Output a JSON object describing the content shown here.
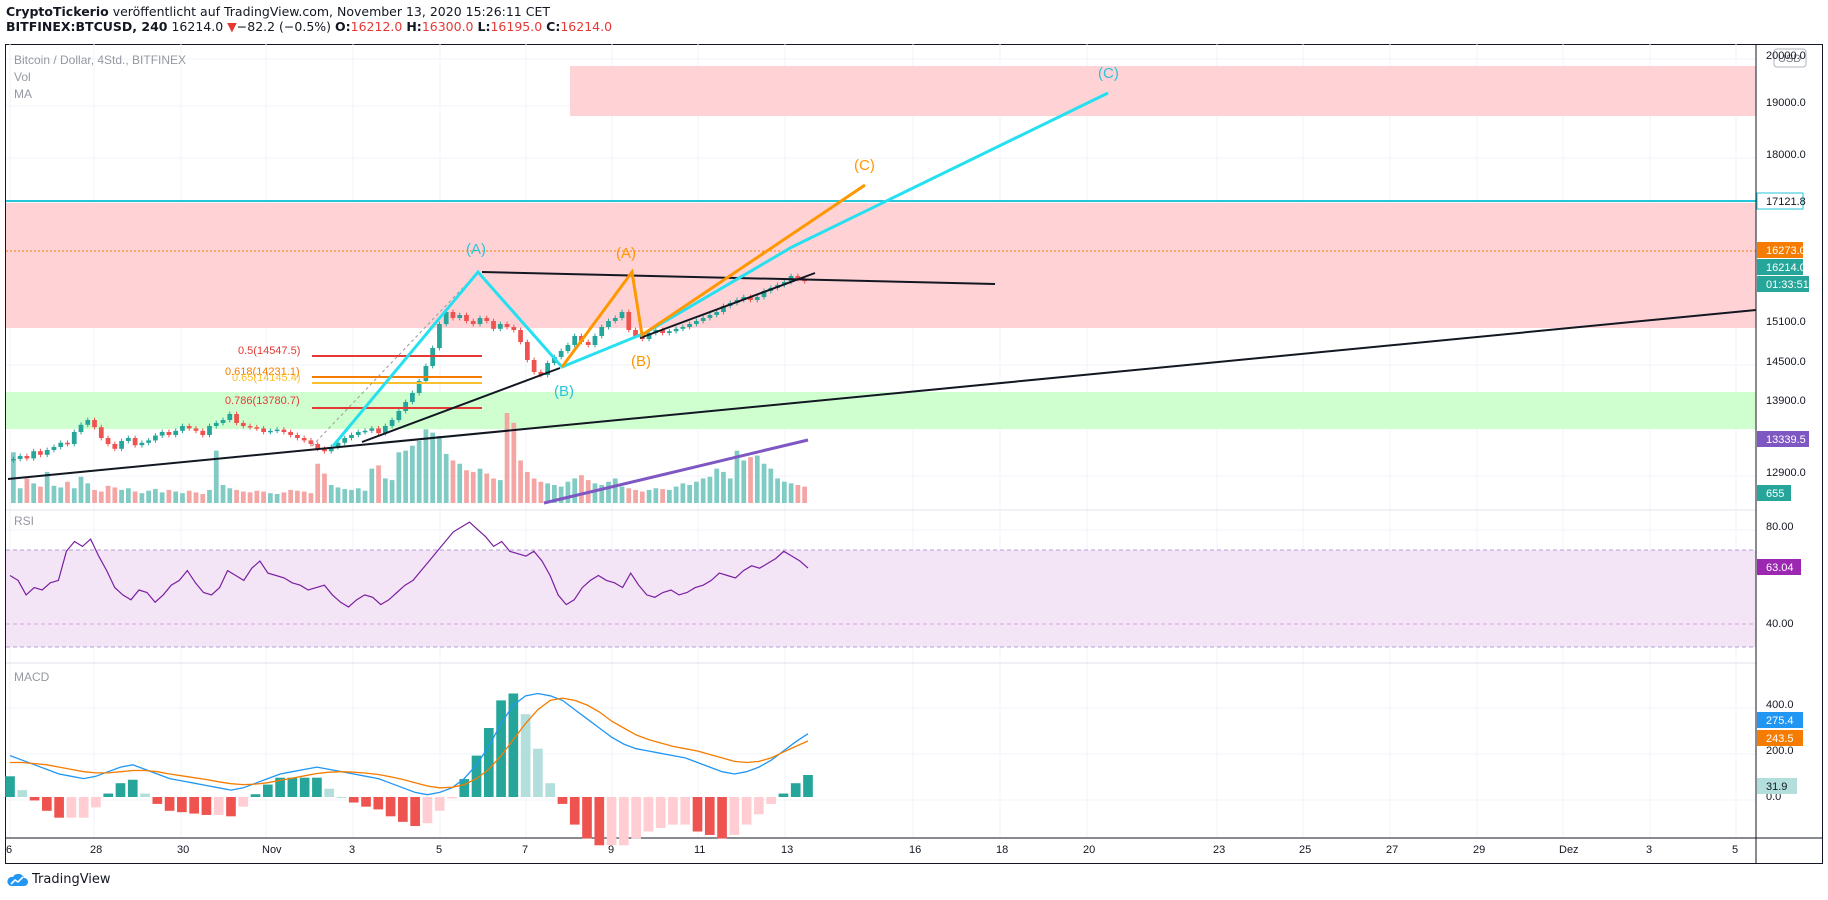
{
  "header": {
    "publisher": "CryptoTickerio",
    "published_text": " veröffentlicht auf TradingView.com, November 13, 2020 15:26:11 CET",
    "symbol": "BITFINEX:BTCUSD, 240",
    "last": "16214.0",
    "change": "−82.2 (−0.5%)",
    "o_label": "O:",
    "o": "16212.0",
    "h_label": "H:",
    "h": "16300.0",
    "l_label": "L:",
    "l": "16195.0",
    "c_label": "C:",
    "c": "16214.0"
  },
  "legend": {
    "title": "Bitcoin / Dollar, 4Std., BITFINEX",
    "vol": "Vol",
    "ma": "MA",
    "rsi": "RSI",
    "macd": "MACD"
  },
  "currency": "USD",
  "price_axis": {
    "ticks": [
      "20000.0",
      "19000.0",
      "18000.0",
      "14500.0",
      "13900.0",
      "12900.0"
    ],
    "badges": [
      {
        "text": "17121.8",
        "color": "#26c6da"
      },
      {
        "text": "16273.0",
        "color": "#f57c00"
      },
      {
        "text": "16214.0",
        "color": "#26a69a"
      },
      {
        "text": "01:33:51",
        "color": "#26a69a"
      },
      {
        "text": "15100.0",
        "color": "none"
      },
      {
        "text": "13339.5",
        "color": "#7e57c2"
      },
      {
        "text": "655",
        "color": "#26a69a"
      }
    ]
  },
  "rsi_axis": {
    "ticks": [
      "80.00",
      "40.00"
    ],
    "badge": "63.04",
    "badge_color": "#9c27b0"
  },
  "macd_axis": {
    "ticks": [
      "400.0",
      "200.0",
      "0.0"
    ],
    "badges": [
      {
        "text": "275.4",
        "color": "#2196f3"
      },
      {
        "text": "243.5",
        "color": "#f57c00"
      },
      {
        "text": "31.9",
        "color": "#b2dfdb"
      }
    ]
  },
  "time_axis": [
    "6",
    "28",
    "30",
    "Nov",
    "3",
    "5",
    "7",
    "9",
    "11",
    "13",
    "16",
    "18",
    "20",
    "23",
    "25",
    "27",
    "29",
    "Dez",
    "3",
    "5"
  ],
  "annotations": {
    "fib": [
      {
        "text": "0.5(14547.5)",
        "color": "#e53935"
      },
      {
        "text": "0.618(14231.1)",
        "color": "#f57c00"
      },
      {
        "text": "0.65(14145.4)",
        "color": "#fbc02d"
      },
      {
        "text": "0.786(13780.7)",
        "color": "#e53935"
      }
    ],
    "waves_cyan": [
      "(A)",
      "(B)",
      "(C)"
    ],
    "waves_orange": [
      "(A)",
      "(B)",
      "(C)"
    ]
  },
  "brand": "TradingView",
  "chart_data": {
    "type": "candlestick",
    "title": "Bitcoin / Dollar, 4Std., BITFINEX",
    "symbol": "BTCUSD",
    "timeframe": "240",
    "price_range": [
      12700,
      20000
    ],
    "last_price": 16214.0,
    "open": 16212.0,
    "high": 16300.0,
    "low": 16195.0,
    "close": 16214.0,
    "x_labels": [
      "6",
      "28",
      "30",
      "Nov",
      "3",
      "5",
      "7",
      "9",
      "11",
      "13",
      "16",
      "18",
      "20",
      "23",
      "25",
      "27",
      "29",
      "Dez",
      "3",
      "5"
    ],
    "price_series": [
      13250,
      13300,
      13260,
      13380,
      13320,
      13400,
      13450,
      13520,
      13500,
      13700,
      13820,
      13900,
      13780,
      13600,
      13500,
      13420,
      13550,
      13600,
      13480,
      13520,
      13560,
      13640,
      13700,
      13650,
      13720,
      13800,
      13760,
      13720,
      13650,
      13800,
      13850,
      13900,
      14000,
      13850,
      13800,
      13780,
      13760,
      13700,
      13720,
      13740,
      13700,
      13650,
      13600,
      13560,
      13500,
      13420,
      13380,
      13450,
      13520,
      13600,
      13650,
      13700,
      13720,
      13760,
      13680,
      13800,
      13900,
      14050,
      14200,
      14350,
      14550,
      14800,
      15100,
      15500,
      15700,
      15600,
      15650,
      15550,
      15500,
      15600,
      15550,
      15420,
      15500,
      15450,
      15400,
      15200,
      14900,
      14700,
      14650,
      14850,
      14950,
      15050,
      15150,
      15300,
      15200,
      15150,
      15300,
      15450,
      15550,
      15600,
      15700,
      15400,
      15300,
      15250,
      15350,
      15400,
      15350,
      15380,
      15420,
      15450,
      15500,
      15550,
      15600,
      15650,
      15700,
      15800,
      15850,
      15900,
      15950,
      15900,
      15950,
      16050,
      16100,
      16150,
      16200,
      16300,
      16250,
      16214
    ],
    "volume_series": [
      620,
      180,
      300,
      240,
      200,
      380,
      210,
      190,
      260,
      180,
      320,
      240,
      160,
      140,
      210,
      190,
      160,
      180,
      140,
      120,
      150,
      170,
      130,
      160,
      140,
      120,
      150,
      130,
      110,
      160,
      640,
      220,
      180,
      160,
      140,
      130,
      150,
      140,
      120,
      110,
      130,
      160,
      150,
      140,
      120,
      480,
      360,
      220,
      190,
      170,
      160,
      180,
      150,
      420,
      460,
      300,
      280,
      620,
      640,
      700,
      760,
      900,
      860,
      820,
      600,
      520,
      480,
      400,
      380,
      420,
      360,
      300,
      280,
      1100,
      980,
      520,
      380,
      300,
      260,
      240,
      220,
      200,
      260,
      300,
      340,
      280,
      240,
      220,
      260,
      300,
      200,
      180,
      160,
      140,
      160,
      180,
      170,
      160,
      200,
      240,
      220,
      260,
      300,
      320,
      420,
      380,
      300,
      640,
      520,
      560,
      580,
      480,
      420,
      300,
      260,
      240,
      220,
      200
    ],
    "rsi_series": [
      60,
      58,
      52,
      55,
      54,
      57,
      58,
      70,
      74,
      72,
      75,
      68,
      62,
      55,
      52,
      50,
      54,
      53,
      49,
      52,
      56,
      58,
      62,
      57,
      53,
      52,
      55,
      62,
      60,
      58,
      63,
      66,
      61,
      60,
      59,
      57,
      56,
      54,
      55,
      56,
      52,
      49,
      47,
      50,
      52,
      51,
      48,
      50,
      53,
      56,
      58,
      62,
      66,
      70,
      74,
      78,
      80,
      82,
      79,
      76,
      72,
      74,
      70,
      69,
      68,
      70,
      66,
      60,
      52,
      48,
      50,
      55,
      58,
      60,
      58,
      57,
      55,
      61,
      56,
      52,
      51,
      53,
      54,
      52,
      53,
      55,
      56,
      58,
      61,
      60,
      59,
      62,
      64,
      63,
      65,
      67,
      70,
      68,
      66,
      63.04
    ],
    "macd_series": [
      180,
      160,
      140,
      120,
      100,
      90,
      80,
      90,
      110,
      130,
      140,
      120,
      100,
      80,
      70,
      60,
      50,
      40,
      30,
      40,
      60,
      80,
      100,
      110,
      120,
      130,
      120,
      110,
      100,
      90,
      80,
      60,
      40,
      20,
      10,
      20,
      40,
      80,
      140,
      220,
      320,
      400,
      440,
      450,
      440,
      420,
      380,
      340,
      300,
      260,
      230,
      210,
      200,
      190,
      180,
      170,
      150,
      130,
      110,
      100,
      110,
      130,
      160,
      200,
      240,
      275.4
    ],
    "signal_series": [
      150,
      150,
      145,
      140,
      130,
      120,
      110,
      105,
      105,
      110,
      115,
      115,
      110,
      100,
      92,
      84,
      76,
      66,
      58,
      54,
      56,
      62,
      72,
      82,
      92,
      102,
      108,
      110,
      108,
      104,
      98,
      88,
      76,
      62,
      48,
      40,
      42,
      54,
      80,
      120,
      180,
      250,
      320,
      380,
      420,
      430,
      420,
      400,
      370,
      330,
      300,
      270,
      250,
      235,
      220,
      210,
      200,
      185,
      170,
      155,
      150,
      155,
      170,
      195,
      220,
      243.5
    ],
    "hist_series": [
      30,
      10,
      -5,
      -20,
      -30,
      -30,
      -30,
      -15,
      5,
      20,
      25,
      5,
      -10,
      -20,
      -22,
      -24,
      -26,
      -26,
      -28,
      -14,
      4,
      18,
      28,
      28,
      28,
      28,
      12,
      0,
      -8,
      -14,
      -18,
      -28,
      -36,
      -42,
      -38,
      -20,
      -2,
      26,
      60,
      100,
      140,
      150,
      120,
      70,
      20,
      -10,
      -40,
      -60,
      -70,
      -70,
      -70,
      -60,
      -50,
      -45,
      -40,
      -40,
      -50,
      -55,
      -60,
      -55,
      -40,
      -25,
      -10,
      5,
      20,
      31.9
    ]
  }
}
